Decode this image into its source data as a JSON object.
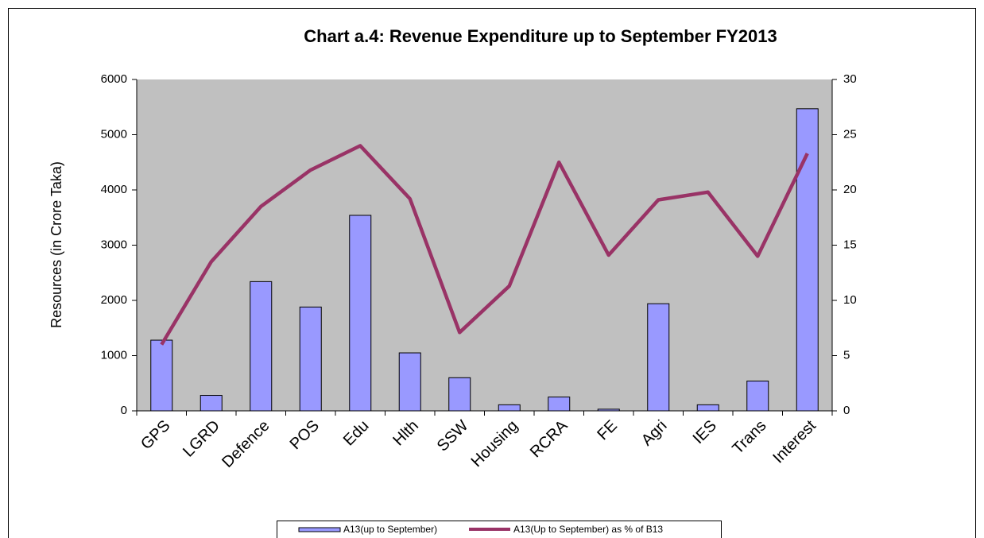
{
  "chart_data": {
    "type": "bar_line",
    "title": "Chart a.4:  Revenue Expenditure up to September FY2013",
    "y_label": "Resources (in Crore Taka)",
    "categories": [
      "GPS",
      "LGRD",
      "Defence",
      "POS",
      "Edu",
      "Hlth",
      "SSW",
      "Housing",
      "RCRA",
      "FE",
      "Agri",
      "IES",
      "Trans",
      "Interest"
    ],
    "series": [
      {
        "name": "A13(up to September)",
        "color": "#9999ff",
        "type": "bar",
        "values": [
          1280,
          280,
          2340,
          1880,
          3540,
          1050,
          600,
          110,
          250,
          30,
          1940,
          110,
          540,
          5470
        ]
      },
      {
        "name": "A13(Up to September) as % of B13",
        "color": "#993366",
        "type": "line",
        "axis": "y2",
        "values": [
          6,
          13.5,
          18.5,
          21.8,
          24,
          19.2,
          7.1,
          11.3,
          22.5,
          14.1,
          19.1,
          19.8,
          14,
          23.3
        ]
      }
    ],
    "ylim": [
      0,
      6000
    ],
    "yticks": [
      0,
      1000,
      2000,
      3000,
      4000,
      5000,
      6000
    ],
    "y2lim": [
      0,
      30
    ],
    "y2ticks": [
      0,
      5,
      10,
      15,
      20,
      25,
      30
    ],
    "plot_background": "#c0c0c0",
    "grid": false,
    "legend": "bottom"
  }
}
